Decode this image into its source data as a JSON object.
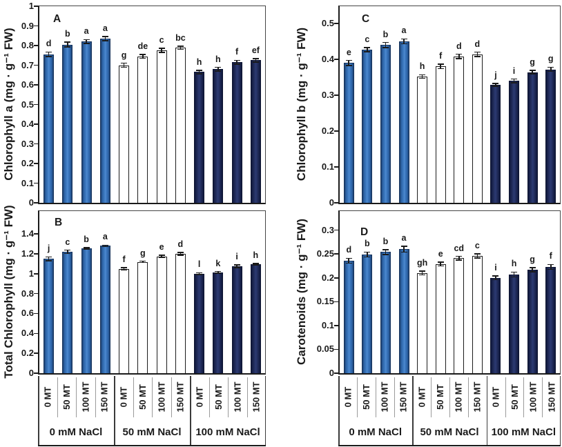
{
  "figure": {
    "categories": [
      "0 MT",
      "50 MT",
      "100 MT",
      "150 MT"
    ],
    "group_labels": [
      "0 mM NaCl",
      "50 mM NaCl",
      "100 mM NaCl"
    ],
    "colors": {
      "light_blue": "#3e7cc2",
      "light_blue_edge": "#16335c",
      "white_bar": "#ffffff",
      "white_bar_edge": "#1a1a1a",
      "navy": "#2c3a72",
      "navy_edge": "#0d1430",
      "axis": "#1a1a1a",
      "text": "#1a1a1a"
    }
  },
  "chart_data": [
    {
      "type": "bar",
      "panel_label": "A",
      "ylabel": "Chlorophyll a (mg · g⁻¹ FW)",
      "ylim": [
        0,
        1
      ],
      "ytick_labels": [
        "0",
        "0.1",
        "0.2",
        "0.3",
        "0.4",
        "0.5",
        "0.6",
        "0.7",
        "0.8",
        "0.9",
        "1"
      ],
      "categories": [
        "0 MT",
        "50 MT",
        "100 MT",
        "150 MT"
      ],
      "grid": false,
      "legend": "none",
      "series": [
        {
          "name": "0 mM NaCl",
          "style": "light-blue",
          "values": [
            0.755,
            0.805,
            0.82,
            0.835
          ],
          "errors": [
            0.012,
            0.012,
            0.01,
            0.01
          ],
          "letters": [
            "d",
            "b",
            "a",
            "a"
          ]
        },
        {
          "name": "50 mM NaCl",
          "style": "white",
          "values": [
            0.7,
            0.745,
            0.775,
            0.788
          ],
          "errors": [
            0.01,
            0.01,
            0.01,
            0.008
          ],
          "letters": [
            "g",
            "de",
            "c",
            "bc"
          ]
        },
        {
          "name": "100 mM NaCl",
          "style": "navy",
          "values": [
            0.665,
            0.68,
            0.715,
            0.725
          ],
          "errors": [
            0.008,
            0.009,
            0.01,
            0.009
          ],
          "letters": [
            "h",
            "h",
            "f",
            "ef"
          ]
        }
      ]
    },
    {
      "type": "bar",
      "panel_label": "C",
      "ylabel": "Chlorophyll b (mg · g⁻¹ FW)",
      "ylim": [
        0,
        0.5
      ],
      "ytick_labels": [
        "0",
        "0.1",
        "0.2",
        "0.3",
        "0.4",
        "0.5"
      ],
      "categories": [
        "0 MT",
        "50 MT",
        "100 MT",
        "150 MT"
      ],
      "grid": false,
      "legend": "none",
      "series": [
        {
          "name": "0 mM NaCl",
          "style": "light-blue",
          "values": [
            0.39,
            0.427,
            0.44,
            0.45
          ],
          "errors": [
            0.007,
            0.006,
            0.007,
            0.007
          ],
          "letters": [
            "e",
            "c",
            "b",
            "a"
          ]
        },
        {
          "name": "50 mM NaCl",
          "style": "white",
          "values": [
            0.352,
            0.38,
            0.408,
            0.414
          ],
          "errors": [
            0.005,
            0.006,
            0.006,
            0.006
          ],
          "letters": [
            "h",
            "f",
            "d",
            "d"
          ]
        },
        {
          "name": "100 mM NaCl",
          "style": "navy",
          "values": [
            0.329,
            0.34,
            0.364,
            0.372
          ],
          "errors": [
            0.004,
            0.005,
            0.005,
            0.006
          ],
          "letters": [
            "j",
            "i",
            "g",
            "g"
          ]
        }
      ]
    },
    {
      "type": "bar",
      "panel_label": "B",
      "ylabel": "Total Chlorophyll (mg · g⁻¹ FW)",
      "ylim": [
        0,
        1.4
      ],
      "ytick_labels": [
        "0",
        "0.2",
        "0.4",
        "0.6",
        "0.8",
        "1",
        "1.2",
        "1.4"
      ],
      "categories": [
        "0 MT",
        "50 MT",
        "100 MT",
        "150 MT"
      ],
      "grid": false,
      "legend": "none",
      "series": [
        {
          "name": "0 mM NaCl",
          "style": "light-blue",
          "values": [
            1.15,
            1.22,
            1.255,
            1.28
          ],
          "errors": [
            0.02,
            0.018,
            0.008,
            0.008
          ],
          "letters": [
            "j",
            "c",
            "b",
            "a"
          ]
        },
        {
          "name": "50 mM NaCl",
          "style": "white",
          "values": [
            1.05,
            1.12,
            1.175,
            1.2
          ],
          "errors": [
            0.012,
            0.006,
            0.012,
            0.015
          ],
          "letters": [
            "f",
            "g",
            "e",
            "d"
          ]
        },
        {
          "name": "100 mM NaCl",
          "style": "navy",
          "values": [
            1.0,
            1.015,
            1.075,
            1.095
          ],
          "errors": [
            0.01,
            0.008,
            0.012,
            0.006
          ],
          "letters": [
            "l",
            "k",
            "i",
            "h"
          ]
        }
      ]
    },
    {
      "type": "bar",
      "panel_label": "D",
      "ylabel": "Carotenoids (mg · g⁻¹ FW)",
      "ylim": [
        0,
        0.3
      ],
      "ytick_labels": [
        "0",
        "0.05",
        "0.1",
        "0.15",
        "0.2",
        "0.25",
        "0.3"
      ],
      "categories": [
        "0 MT",
        "50 MT",
        "100 MT",
        "150 MT"
      ],
      "grid": false,
      "legend": "none",
      "series": [
        {
          "name": "0 mM NaCl",
          "style": "light-blue",
          "values": [
            0.236,
            0.249,
            0.254,
            0.26
          ],
          "errors": [
            0.005,
            0.005,
            0.005,
            0.006
          ],
          "letters": [
            "d",
            "b",
            "b",
            "a"
          ]
        },
        {
          "name": "50 mM NaCl",
          "style": "white",
          "values": [
            0.21,
            0.229,
            0.241,
            0.246
          ],
          "errors": [
            0.004,
            0.004,
            0.004,
            0.004
          ],
          "letters": [
            "gh",
            "e",
            "cd",
            "c"
          ]
        },
        {
          "name": "100 mM NaCl",
          "style": "navy",
          "values": [
            0.2,
            0.207,
            0.217,
            0.223
          ],
          "errors": [
            0.004,
            0.005,
            0.004,
            0.005
          ],
          "letters": [
            "i",
            "h",
            "g",
            "f"
          ]
        }
      ]
    }
  ]
}
